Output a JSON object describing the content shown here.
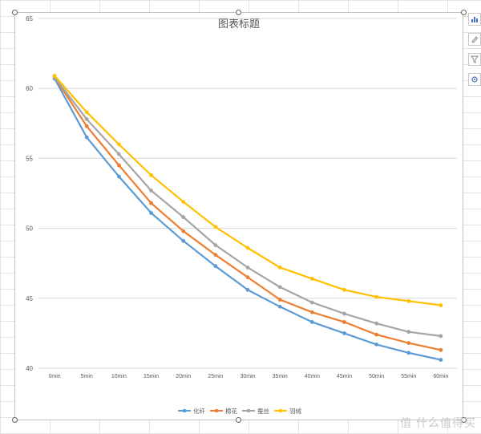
{
  "watermark": "值 什么值得买",
  "colors": {
    "huaxian": "#5b9bd5",
    "mianhua": "#ed7d31",
    "cansi": "#a5a5a5",
    "yurong": "#ffc000",
    "grid": "#d9d9d9",
    "axis_text": "#595959"
  },
  "icons": [
    "chart-elements-icon",
    "chart-style-icon",
    "chart-filter-icon",
    "settings-icon"
  ],
  "chart_data": {
    "type": "line",
    "title": "图表标题",
    "xlabel": "",
    "ylabel": "",
    "categories": [
      "0min",
      "5min",
      "10min",
      "15min",
      "20min",
      "25min",
      "30min",
      "35min",
      "40min",
      "45min",
      "50min",
      "55min",
      "60min"
    ],
    "ylim": [
      40,
      65
    ],
    "yticks": [
      40,
      45,
      50,
      55,
      60,
      65
    ],
    "grid": true,
    "legend_position": "bottom",
    "series": [
      {
        "name": "化纤",
        "color": "#5b9bd5",
        "values": [
          60.7,
          56.5,
          53.7,
          51.1,
          49.1,
          47.3,
          45.6,
          44.4,
          43.3,
          42.5,
          41.7,
          41.1,
          40.6
        ]
      },
      {
        "name": "棉花",
        "color": "#ed7d31",
        "values": [
          60.8,
          57.3,
          54.5,
          51.8,
          49.8,
          48.1,
          46.5,
          44.9,
          44.0,
          43.3,
          42.4,
          41.8,
          41.3
        ]
      },
      {
        "name": "蚕丝",
        "color": "#a5a5a5",
        "values": [
          60.8,
          57.8,
          55.3,
          52.7,
          50.8,
          48.8,
          47.2,
          45.8,
          44.7,
          43.9,
          43.2,
          42.6,
          42.3
        ]
      },
      {
        "name": "羽绒",
        "color": "#ffc000",
        "values": [
          60.9,
          58.3,
          56.0,
          53.8,
          51.9,
          50.1,
          48.6,
          47.2,
          46.4,
          45.6,
          45.1,
          44.8,
          44.5
        ]
      }
    ]
  }
}
